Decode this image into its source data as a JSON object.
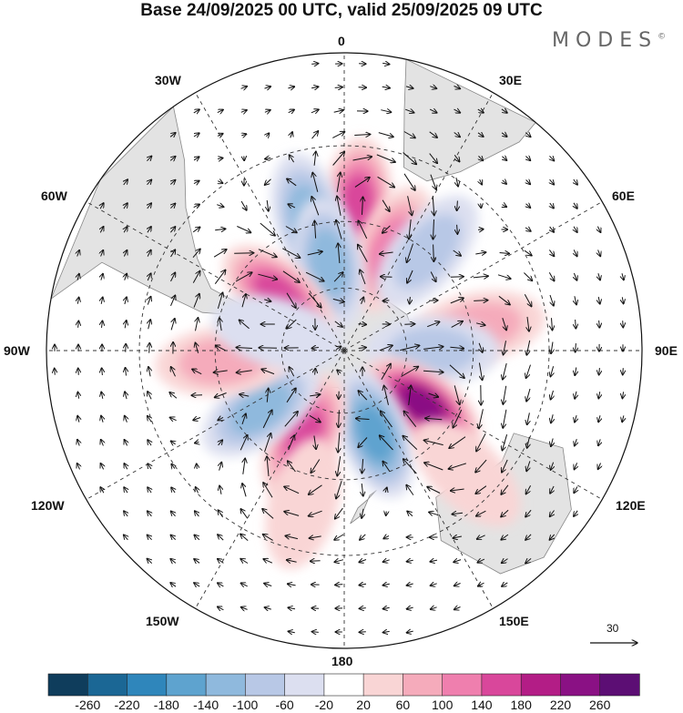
{
  "title": "Base 24/09/2025 00 UTC, valid 25/09/2025 09 UTC",
  "brand": "MODES",
  "brand_mark": "©",
  "longitude_labels": {
    "top": "0",
    "bottom": "180",
    "w30": "30W",
    "e30": "30E",
    "w60": "60W",
    "e60": "60E",
    "w90": "90W",
    "e90": "90E",
    "w120": "120W",
    "e120": "120E",
    "w150": "150W",
    "e150": "150E"
  },
  "reference_vector": {
    "label": "30"
  },
  "chart_data": {
    "type": "heatmap",
    "projection": "south-polar-stereographic",
    "title": "Base 24/09/2025 00 UTC, valid 25/09/2025 09 UTC",
    "colorbar": {
      "ticks": [
        "-260",
        "-220",
        "-180",
        "-140",
        "-100",
        "-60",
        "-20",
        "20",
        "60",
        "100",
        "140",
        "180",
        "220",
        "260"
      ],
      "colors": [
        "#0f3d5c",
        "#1b6795",
        "#2f86bb",
        "#5ea3cf",
        "#8fb9dd",
        "#b8c8e6",
        "#dcdff0",
        "#ffffff",
        "#f9d5d5",
        "#f5abbb",
        "#ef7fae",
        "#d9479b",
        "#b31d86",
        "#8a1184",
        "#5c0e74"
      ]
    },
    "anomaly_centers": [
      {
        "lon": 5,
        "lat": -45,
        "value": 150,
        "sign": "positive"
      },
      {
        "lon": 25,
        "lat": -55,
        "value": 130,
        "sign": "positive"
      },
      {
        "lon": -15,
        "lat": -48,
        "value": -120,
        "sign": "negative"
      },
      {
        "lon": -10,
        "lat": -62,
        "value": -110,
        "sign": "negative"
      },
      {
        "lon": 40,
        "lat": -50,
        "value": -90,
        "sign": "negative"
      },
      {
        "lon": 80,
        "lat": -48,
        "value": 90,
        "sign": "positive"
      },
      {
        "lon": 90,
        "lat": -62,
        "value": -60,
        "sign": "negative"
      },
      {
        "lon": 125,
        "lat": -60,
        "value": 250,
        "sign": "positive"
      },
      {
        "lon": 160,
        "lat": -62,
        "value": -150,
        "sign": "negative"
      },
      {
        "lon": -155,
        "lat": -60,
        "value": 170,
        "sign": "positive"
      },
      {
        "lon": -125,
        "lat": -58,
        "value": -110,
        "sign": "negative"
      },
      {
        "lon": -50,
        "lat": -63,
        "value": 160,
        "sign": "positive"
      },
      {
        "lon": -95,
        "lat": -52,
        "value": 60,
        "sign": "positive"
      },
      {
        "lon": -75,
        "lat": -68,
        "value": -40,
        "sign": "negative"
      },
      {
        "lon": 135,
        "lat": -38,
        "value": 30,
        "sign": "positive"
      },
      {
        "lon": -165,
        "lat": -42,
        "value": 30,
        "sign": "positive"
      }
    ]
  }
}
